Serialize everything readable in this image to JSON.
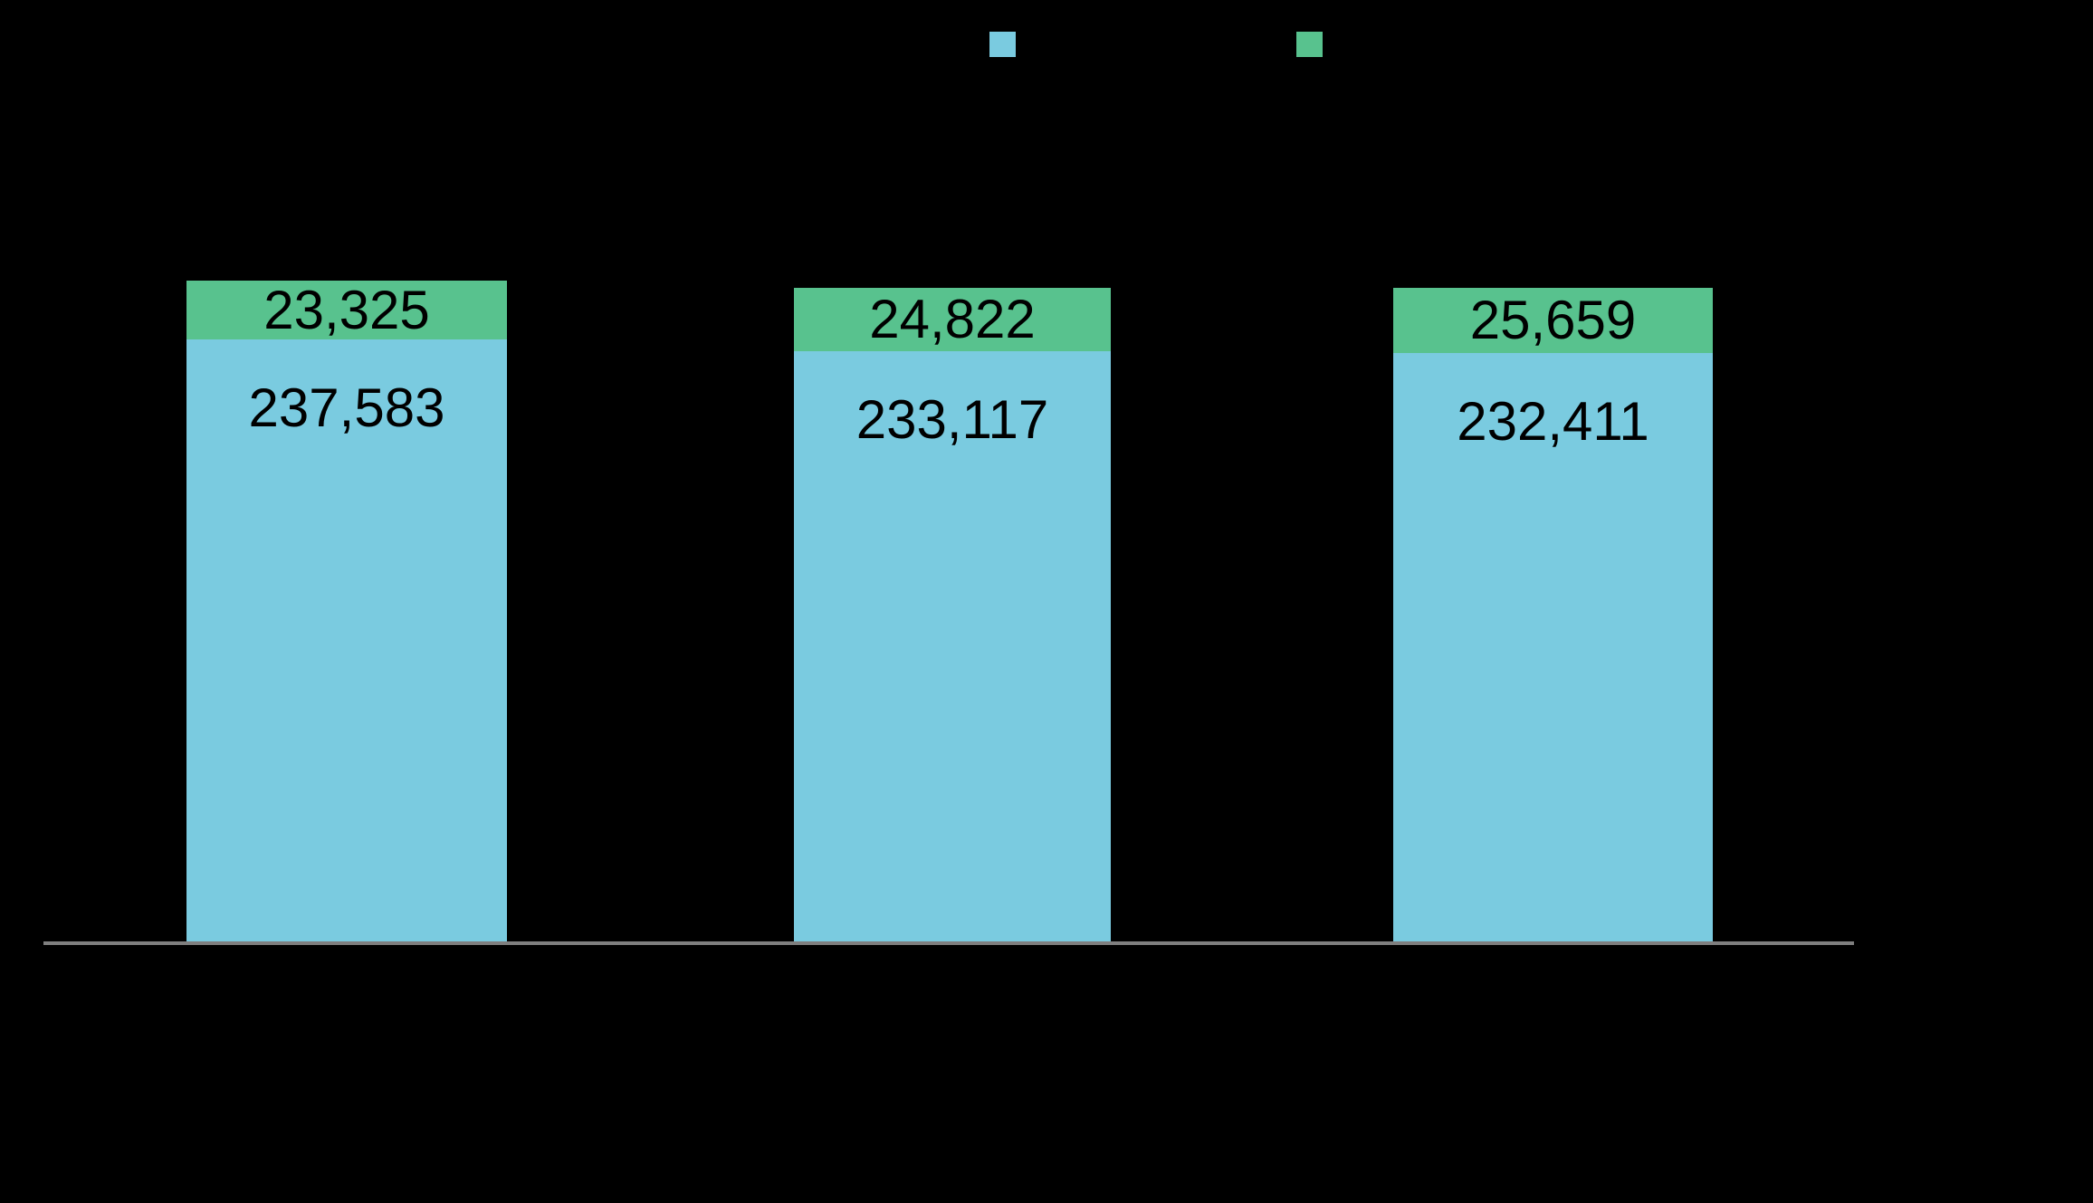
{
  "page": {
    "background": "#000000"
  },
  "legend": {
    "position": "top",
    "items": [
      {
        "name": "blue-series-swatch",
        "color": "#7ACBE0"
      },
      {
        "name": "green-series-swatch",
        "color": "#58C28E"
      }
    ]
  },
  "chart_data": {
    "type": "bar",
    "stacked": true,
    "orientation": "vertical",
    "categories": [
      "",
      "",
      ""
    ],
    "series": [
      {
        "name": "blue",
        "color": "#7ACBE0",
        "values": [
          237583,
          233117,
          232411
        ]
      },
      {
        "name": "green",
        "color": "#58C28E",
        "values": [
          23325,
          24822,
          25659
        ]
      }
    ],
    "data_labels": {
      "blue": [
        "237,583",
        "233,117",
        "232,411"
      ],
      "green": [
        "23,325",
        "24,822",
        "25,659"
      ]
    },
    "title": "",
    "xlabel": "",
    "ylabel": "",
    "ylim": [
      0,
      300000
    ],
    "grid": false,
    "legend_position": "top",
    "axis_line_color": "#7F7F7F",
    "data_label_color": "#000000",
    "background": "#000000"
  }
}
